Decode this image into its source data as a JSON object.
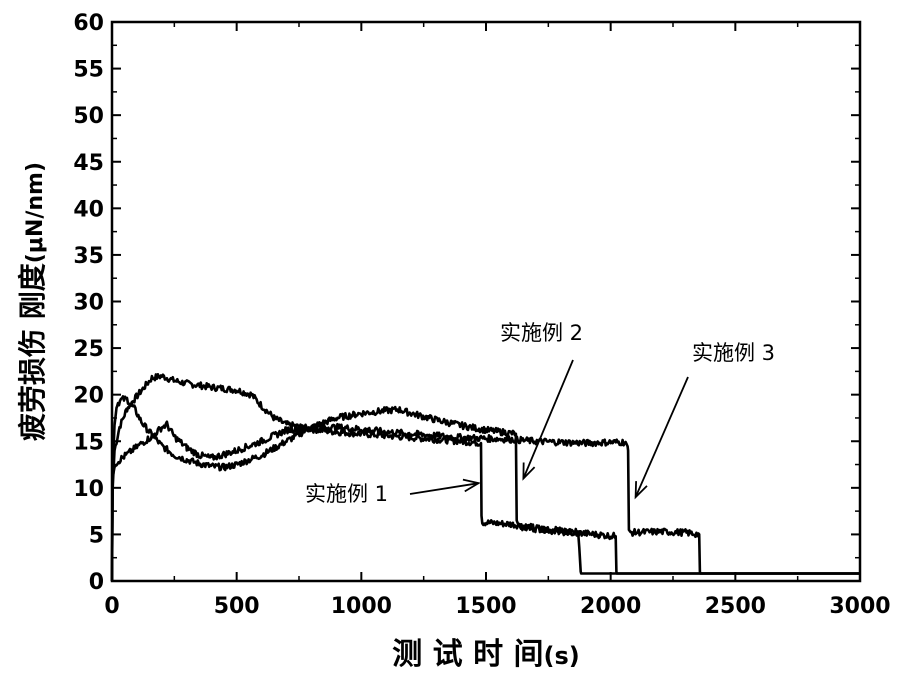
{
  "chart_data": {
    "type": "line",
    "xlabel": "测 试 时 间",
    "xlabel_unit": "(s)",
    "ylabel": "疲劳损伤 刚度",
    "ylabel_unit": "(μN/nm)",
    "xlim": [
      0,
      3000
    ],
    "ylim": [
      0,
      60
    ],
    "x_ticks": [
      "0",
      "500",
      "1000",
      "1500",
      "2000",
      "2500",
      "3000"
    ],
    "y_ticks": [
      "0",
      "5",
      "10",
      "15",
      "20",
      "25",
      "30",
      "35",
      "40",
      "45",
      "50",
      "55",
      "60"
    ],
    "grid": false,
    "legend": "none",
    "line_color": "#000000",
    "series": [
      {
        "name": "实施例 1",
        "points": [
          [
            0,
            0
          ],
          [
            3,
            10
          ],
          [
            10,
            14
          ],
          [
            30,
            16.5
          ],
          [
            60,
            18.5
          ],
          [
            90,
            19.5
          ],
          [
            120,
            20.5
          ],
          [
            160,
            21.8
          ],
          [
            200,
            22
          ],
          [
            250,
            21.5
          ],
          [
            300,
            21.2
          ],
          [
            400,
            20.8
          ],
          [
            500,
            20.5
          ],
          [
            560,
            20
          ],
          [
            600,
            18.8
          ],
          [
            650,
            17.5
          ],
          [
            700,
            16.8
          ],
          [
            800,
            16.3
          ],
          [
            900,
            16
          ],
          [
            1000,
            15.8
          ],
          [
            1100,
            15.6
          ],
          [
            1200,
            15.4
          ],
          [
            1300,
            15.2
          ],
          [
            1400,
            15
          ],
          [
            1480,
            14.8
          ],
          [
            1482,
            7
          ],
          [
            1485,
            6.3
          ],
          [
            1600,
            6.1
          ],
          [
            1700,
            5.7
          ],
          [
            1800,
            5.4
          ],
          [
            1870,
            5.2
          ],
          [
            1880,
            1
          ],
          [
            1882,
            0.8
          ],
          [
            3000,
            0.8
          ]
        ]
      },
      {
        "name": "实施例 2",
        "points": [
          [
            0,
            0
          ],
          [
            3,
            12
          ],
          [
            10,
            17
          ],
          [
            20,
            19
          ],
          [
            40,
            19.5
          ],
          [
            60,
            19.5
          ],
          [
            90,
            18.5
          ],
          [
            120,
            17
          ],
          [
            150,
            16
          ],
          [
            200,
            14.5
          ],
          [
            250,
            13.5
          ],
          [
            300,
            13
          ],
          [
            350,
            12.6
          ],
          [
            400,
            12.3
          ],
          [
            450,
            12.2
          ],
          [
            500,
            12.5
          ],
          [
            600,
            13.5
          ],
          [
            700,
            15
          ],
          [
            800,
            16.5
          ],
          [
            900,
            17.5
          ],
          [
            1000,
            18
          ],
          [
            1100,
            18.3
          ],
          [
            1150,
            18.4
          ],
          [
            1200,
            18
          ],
          [
            1300,
            17.3
          ],
          [
            1400,
            16.7
          ],
          [
            1500,
            16.2
          ],
          [
            1620,
            15.8
          ],
          [
            1623,
            6.5
          ],
          [
            1630,
            5.8
          ],
          [
            1700,
            5.6
          ],
          [
            1800,
            5.3
          ],
          [
            1900,
            5.1
          ],
          [
            2020,
            4.8
          ],
          [
            2023,
            1
          ],
          [
            2025,
            0.8
          ],
          [
            3000,
            0.8
          ]
        ]
      },
      {
        "name": "实施例 3",
        "points": [
          [
            0,
            0
          ],
          [
            2,
            11
          ],
          [
            10,
            12.5
          ],
          [
            40,
            13.2
          ],
          [
            80,
            14
          ],
          [
            120,
            14.8
          ],
          [
            160,
            15.5
          ],
          [
            200,
            16.5
          ],
          [
            220,
            16.8
          ],
          [
            250,
            15.5
          ],
          [
            300,
            14.3
          ],
          [
            350,
            13.5
          ],
          [
            400,
            13.2
          ],
          [
            500,
            14
          ],
          [
            600,
            15
          ],
          [
            700,
            16.2
          ],
          [
            800,
            16.5
          ],
          [
            900,
            16.5
          ],
          [
            1000,
            16.3
          ],
          [
            1100,
            16
          ],
          [
            1200,
            15.8
          ],
          [
            1300,
            15.6
          ],
          [
            1400,
            15.4
          ],
          [
            1500,
            15.3
          ],
          [
            1600,
            15.2
          ],
          [
            1700,
            15
          ],
          [
            1800,
            14.9
          ],
          [
            1900,
            14.8
          ],
          [
            2000,
            14.9
          ],
          [
            2060,
            14.9
          ],
          [
            2070,
            14
          ],
          [
            2073,
            5.5
          ],
          [
            2080,
            5.2
          ],
          [
            2200,
            5.3
          ],
          [
            2300,
            5.2
          ],
          [
            2355,
            5
          ],
          [
            2358,
            1
          ],
          [
            2360,
            0.8
          ],
          [
            3000,
            0.8
          ]
        ]
      }
    ],
    "annotations": [
      {
        "text": "实施例 1",
        "tip": [
          1470,
          10.5
        ]
      },
      {
        "text": "实施例 2",
        "tip": [
          1650,
          11
        ]
      },
      {
        "text": "实施例 3",
        "tip": [
          2100,
          9
        ]
      }
    ]
  }
}
